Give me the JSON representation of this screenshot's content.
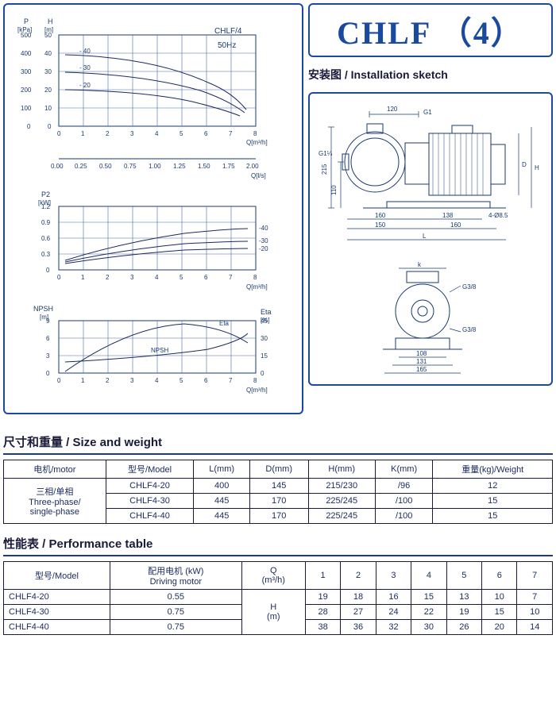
{
  "title": "CHLF （4）",
  "sketch_title": "安装图  /  Installation sketch",
  "chart1": {
    "label_top": "CHLF/4",
    "label_hz": "50Hz",
    "y1_label": "P\n[kPa]",
    "y2_label": "H\n[m]",
    "y1_ticks": [
      0,
      100,
      200,
      300,
      400,
      500
    ],
    "y2_ticks": [
      0,
      10,
      20,
      30,
      40,
      50
    ],
    "x1_ticks": [
      0,
      1,
      2,
      3,
      4,
      5,
      6,
      7,
      8
    ],
    "x1_label": "Q[m³/h]",
    "x2_ticks": [
      "0.00",
      "0.25",
      "0.50",
      "0.75",
      "1.00",
      "1.25",
      "1.50",
      "1.75",
      "2.00"
    ],
    "x2_label": "Q[l/s]",
    "curves": [
      "40",
      "30",
      "20"
    ]
  },
  "chart2": {
    "y_label": "P2\n[kW]",
    "y_ticks": [
      "0",
      "0.3",
      "0.6",
      "0.9",
      "1.2"
    ],
    "x_ticks": [
      0,
      1,
      2,
      3,
      4,
      5,
      6,
      7,
      8
    ],
    "x_label": "Q[m³/h]",
    "curves": [
      "40",
      "30",
      "20"
    ]
  },
  "chart3": {
    "y1_label": "NPSH\n[m]",
    "y2_label": "Eta\n[%]",
    "y1_ticks": [
      0,
      3,
      6,
      9
    ],
    "y2_ticks": [
      0,
      15,
      30,
      45
    ],
    "x_ticks": [
      0,
      1,
      2,
      3,
      4,
      5,
      6,
      7,
      8
    ],
    "x_label": "Q[m³/h]",
    "eta_label": "Eta",
    "npsh_label": "NPSH"
  },
  "sketch_dims": {
    "top120": "120",
    "g1": "G1",
    "g114": "G1¼",
    "v215": "215",
    "v110": "110",
    "h160a": "160",
    "h138": "138",
    "h160b": "160",
    "h150": "150",
    "hL": "L",
    "phi85": "4-Ø8.5",
    "vD": "D",
    "vH": "H",
    "k": "k",
    "g38a": "G3/8",
    "g38b": "G3/8",
    "b108": "108",
    "b131": "131",
    "b165": "165"
  },
  "size_table": {
    "title": "尺寸和重量  /  Size and weight",
    "headers": [
      "电机/motor",
      "型号/Model",
      "L(mm)",
      "D(mm)",
      "H(mm)",
      "K(mm)",
      "重量(kg)/Weight"
    ],
    "motor_label": "三相/单相\nThree-phase/\nsingle-phase",
    "rows": [
      [
        "CHLF4-20",
        "400",
        "145",
        "215/230",
        "/96",
        "12"
      ],
      [
        "CHLF4-30",
        "445",
        "170",
        "225/245",
        "/100",
        "15"
      ],
      [
        "CHLF4-40",
        "445",
        "170",
        "225/245",
        "/100",
        "15"
      ]
    ]
  },
  "perf_table": {
    "title": "性能表  /  Performance table",
    "headers": [
      "型号/Model",
      "配用电机  (kW)\nDriving  motor",
      "Q\n(m³/h)",
      "1",
      "2",
      "3",
      "4",
      "5",
      "6",
      "7"
    ],
    "h_label": "H\n(m)",
    "rows": [
      [
        "CHLF4-20",
        "0.55",
        "19",
        "18",
        "16",
        "15",
        "13",
        "10",
        "7"
      ],
      [
        "CHLF4-30",
        "0.75",
        "28",
        "27",
        "24",
        "22",
        "19",
        "15",
        "10"
      ],
      [
        "CHLF4-40",
        "0.75",
        "38",
        "36",
        "32",
        "30",
        "26",
        "20",
        "14"
      ]
    ]
  }
}
